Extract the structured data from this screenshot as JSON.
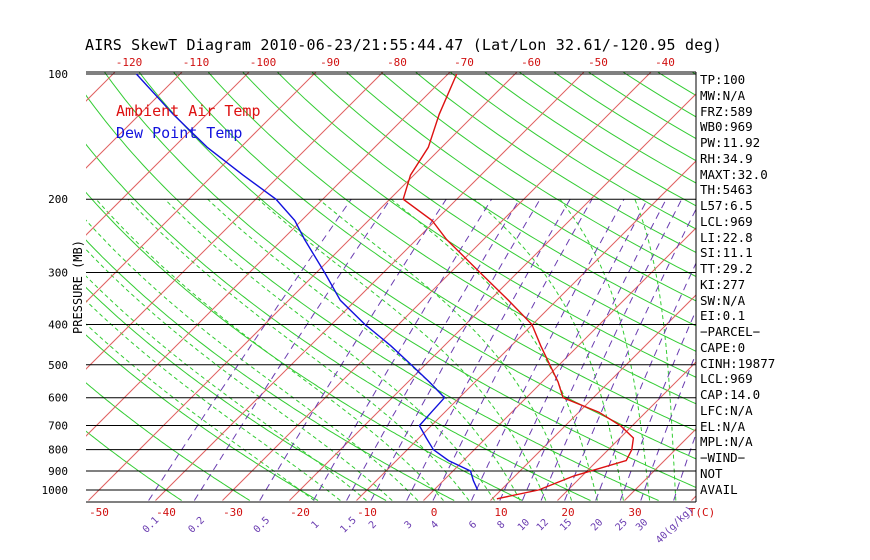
{
  "title": "AIRS SkewT Diagram 2010-06-23/21:55:44.47 (Lat/Lon 32.61/-120.95 deg)",
  "legend": [
    {
      "name": "Ambient Air Temp",
      "color": "#dd1111"
    },
    {
      "name": "Dew Point Temp",
      "color": "#1111dd"
    }
  ],
  "chart_data": {
    "type": "line",
    "ylabel": "PRESSURE (MB)",
    "y_scale": "log",
    "ylim": [
      1050,
      100
    ],
    "xlim_bottom": [
      -55,
      40
    ],
    "xlim_top": [
      -127,
      -38
    ],
    "x_ticks_bottom": [
      "-50",
      "-40",
      "-30",
      "-20",
      "-10",
      "0",
      "10",
      "20",
      "30",
      "T(C)"
    ],
    "x_ticks_top": [
      "-120",
      "-110",
      "-100",
      "-90",
      "-80",
      "-70",
      "-60",
      "-50",
      "-40"
    ],
    "y_ticks": [
      "100",
      "200",
      "300",
      "400",
      "500",
      "600",
      "700",
      "800",
      "900",
      "1000"
    ],
    "mixing_ratio_labels": [
      "0.1",
      "0.2",
      "0.5",
      "1",
      "1.5",
      "2",
      "3",
      "4",
      "6",
      "8",
      "10",
      "12",
      "15",
      "20",
      "25",
      "30",
      "40(g/kg)"
    ],
    "grid": true,
    "series": [
      {
        "name": "Ambient Air Temp",
        "color": "#dd1111",
        "points": [
          [
            1050,
            10.7
          ],
          [
            1000,
            15.6
          ],
          [
            925,
            18.8
          ],
          [
            850,
            24.3
          ],
          [
            800,
            23.5
          ],
          [
            750,
            22
          ],
          [
            700,
            18.2
          ],
          [
            650,
            13
          ],
          [
            600,
            5.5
          ],
          [
            550,
            2.4
          ],
          [
            500,
            -1.4
          ],
          [
            450,
            -5.6
          ],
          [
            400,
            -10.1
          ],
          [
            350,
            -17.2
          ],
          [
            300,
            -25.6
          ],
          [
            250,
            -35.5
          ],
          [
            225,
            -40.5
          ],
          [
            200,
            -48
          ],
          [
            175,
            -50.5
          ],
          [
            150,
            -52
          ],
          [
            125,
            -55.3
          ],
          [
            100,
            -58.7
          ]
        ]
      },
      {
        "name": "Dew Point Temp",
        "color": "#1111dd",
        "points": [
          [
            1000,
            6.5
          ],
          [
            950,
            4.5
          ],
          [
            900,
            2.6
          ],
          [
            850,
            -2.2
          ],
          [
            800,
            -6.1
          ],
          [
            750,
            -8.9
          ],
          [
            700,
            -11.8
          ],
          [
            650,
            -12
          ],
          [
            600,
            -12.2
          ],
          [
            550,
            -16.8
          ],
          [
            500,
            -22.1
          ],
          [
            450,
            -28
          ],
          [
            400,
            -35
          ],
          [
            350,
            -42.3
          ],
          [
            300,
            -48.8
          ],
          [
            250,
            -56.7
          ],
          [
            225,
            -61
          ],
          [
            200,
            -67
          ],
          [
            175,
            -75.5
          ],
          [
            150,
            -85
          ],
          [
            125,
            -95
          ],
          [
            100,
            -106.5
          ]
        ]
      }
    ]
  },
  "indices": [
    "TP:100",
    "MW:N/A",
    "FRZ:589",
    "WB0:969",
    "PW:11.92",
    "RH:34.9",
    "MAXT:32.0",
    "TH:5463",
    "L57:6.5",
    "LCL:969",
    "LI:22.8",
    "SI:11.1",
    "TT:29.2",
    "KI:277",
    "SW:N/A",
    "EI:0.1",
    "−PARCEL−",
    "CAPE:0",
    "CINH:19877",
    "LCL:969",
    "CAP:14.0",
    "LFC:N/A",
    "EL:N/A",
    "MPL:N/A",
    "−WIND−",
    "NOT",
    "AVAIL"
  ]
}
